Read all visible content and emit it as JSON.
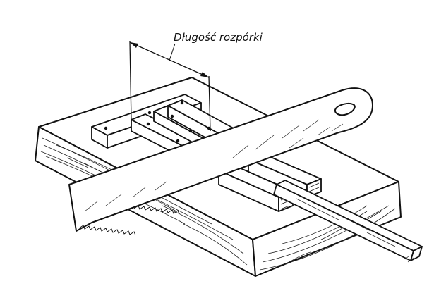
{
  "illustration": {
    "dimension_label": "Długość rozpórki"
  }
}
